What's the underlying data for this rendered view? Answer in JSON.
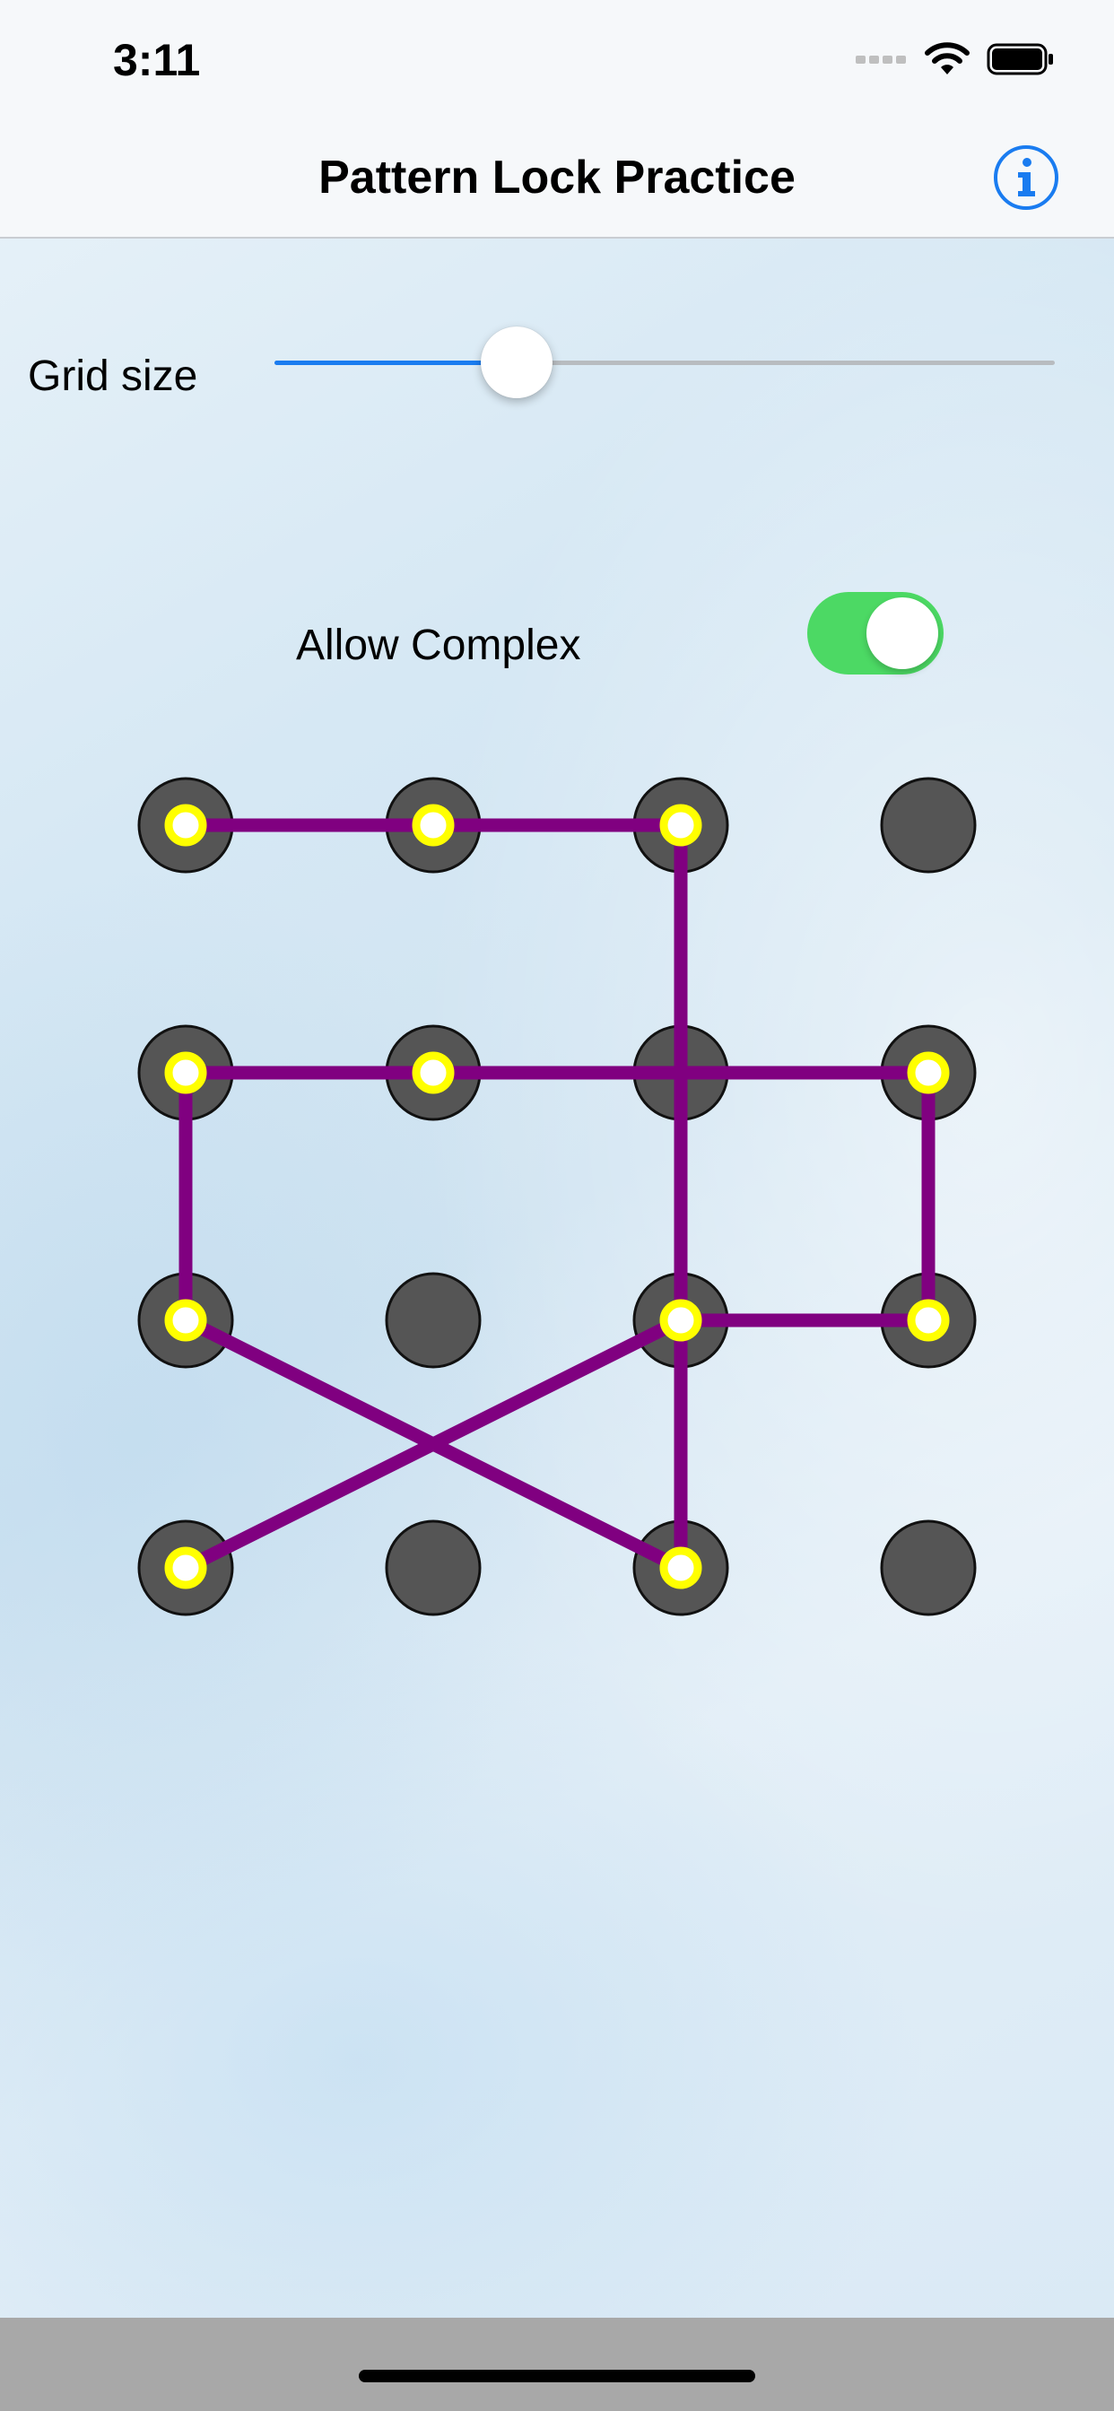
{
  "status_bar": {
    "time": "3:11",
    "icons": [
      "cellular-signal-icon",
      "wifi-icon",
      "battery-icon"
    ]
  },
  "nav": {
    "title": "Pattern Lock Practice",
    "info_icon": "info-icon"
  },
  "controls": {
    "grid_size_label": "Grid size",
    "grid_size_slider": {
      "fraction": 0.31,
      "accent": "#1a7cf0"
    },
    "allow_complex_label": "Allow Complex",
    "allow_complex_on": true,
    "toggle_color": "#4cd964"
  },
  "pattern": {
    "rows": 4,
    "cols": 4,
    "dot_color": "#555555",
    "selected_ring_color": "#ffff00",
    "line_color": "#800080",
    "selected": [
      [
        0,
        0
      ],
      [
        0,
        1
      ],
      [
        0,
        2
      ],
      [
        1,
        0
      ],
      [
        1,
        1
      ],
      [
        1,
        3
      ],
      [
        2,
        0
      ],
      [
        2,
        2
      ],
      [
        2,
        3
      ],
      [
        3,
        0
      ],
      [
        3,
        2
      ]
    ],
    "path": [
      [
        0,
        0
      ],
      [
        0,
        1
      ],
      [
        0,
        2
      ],
      [
        3,
        2
      ],
      [
        3,
        0
      ]
    ],
    "segments": [
      [
        [
          0,
          0
        ],
        [
          0,
          2
        ]
      ],
      [
        [
          0,
          2
        ],
        [
          3,
          2
        ]
      ],
      [
        [
          1,
          0
        ],
        [
          1,
          3
        ]
      ],
      [
        [
          1,
          0
        ],
        [
          2,
          0
        ]
      ],
      [
        [
          2,
          0
        ],
        [
          3,
          2
        ]
      ],
      [
        [
          3,
          0
        ],
        [
          2,
          2
        ]
      ],
      [
        [
          2,
          2
        ],
        [
          2,
          3
        ]
      ],
      [
        [
          2,
          3
        ],
        [
          1,
          3
        ]
      ]
    ]
  }
}
